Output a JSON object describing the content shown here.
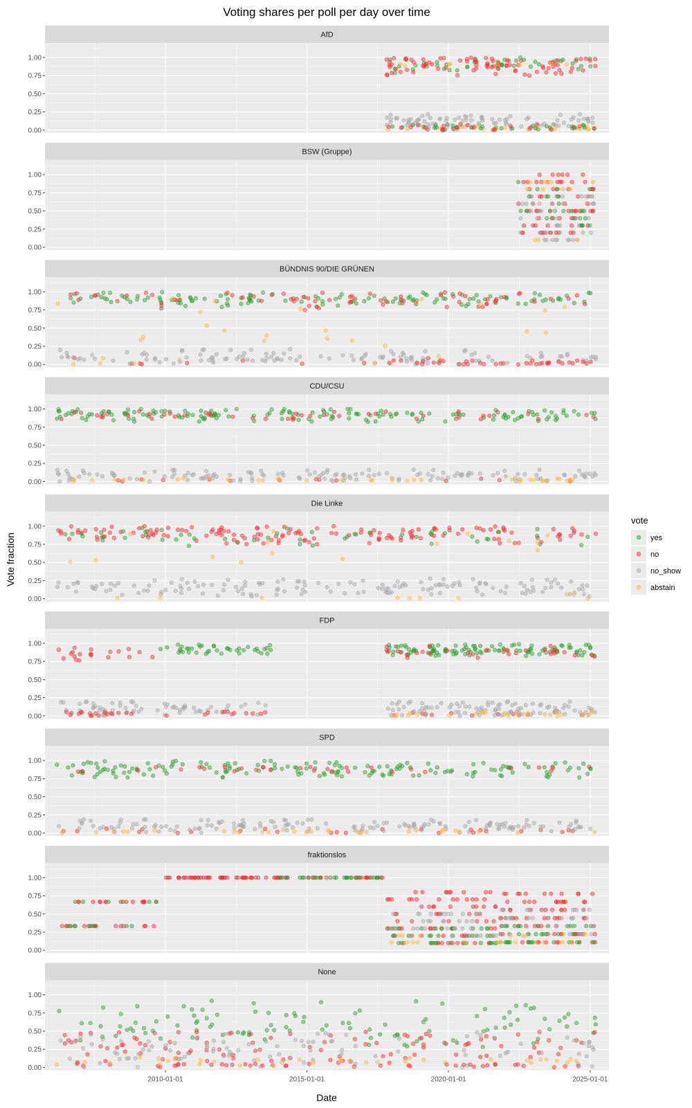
{
  "chart_data": {
    "type": "scatter",
    "title": "Voting shares per poll per day over time",
    "xlabel": "Date",
    "ylabel": "Vote fraction",
    "x_range": [
      "2005-10-01",
      "2025-09-01"
    ],
    "ylim": [
      -0.04,
      1.2
    ],
    "x_ticks": [
      "2010-01-01",
      "2015-01-01",
      "2020-01-01",
      "2025-01-01"
    ],
    "y_ticks": [
      "0.00",
      "0.25",
      "0.50",
      "0.75",
      "1.00"
    ],
    "grid": true,
    "legend": {
      "title": "vote",
      "placement": "right",
      "entries": [
        {
          "name": "yes",
          "color": "#2ca02c"
        },
        {
          "name": "no",
          "color": "#ff2a2a"
        },
        {
          "name": "no_show",
          "color": "#a6a6a6"
        },
        {
          "name": "abstain",
          "color": "#ffb732"
        }
      ]
    },
    "panels": [
      {
        "name": "AfD",
        "clusters": [
          {
            "vote": "yes",
            "from": "2017-10-24",
            "to": "2025-03-20",
            "levels": [
              0.88,
              0.92,
              0.95,
              0.83
            ],
            "n": 45,
            "jitter": 0.06
          },
          {
            "vote": "no",
            "from": "2017-10-24",
            "to": "2025-03-20",
            "levels": [
              0.85,
              0.92,
              0.8,
              0.96
            ],
            "n": 85,
            "jitter": 0.07
          },
          {
            "vote": "no_show",
            "from": "2017-10-24",
            "to": "2025-03-20",
            "levels": [
              0.05,
              0.1,
              0.14,
              0.18
            ],
            "n": 90,
            "jitter": 0.06
          },
          {
            "vote": "abstain",
            "from": "2017-10-24",
            "to": "2025-03-20",
            "levels": [
              0.01,
              0.03,
              0.9
            ],
            "n": 30,
            "jitter": 0.02
          },
          {
            "vote": "yes",
            "from": "2017-10-24",
            "to": "2025-03-20",
            "levels": [
              0.02,
              0.05
            ],
            "n": 30,
            "jitter": 0.03
          },
          {
            "vote": "no",
            "from": "2017-10-24",
            "to": "2025-03-20",
            "levels": [
              0.02,
              0.06
            ],
            "n": 25,
            "jitter": 0.03
          }
        ]
      },
      {
        "name": "BSW (Gruppe)",
        "clusters": [
          {
            "vote": "no",
            "from": "2022-06-01",
            "to": "2025-02-20",
            "levels": [
              1.0,
              0.9,
              0.8,
              0.7,
              0.6,
              0.5,
              0.4,
              0.3,
              0.2
            ],
            "n": 70,
            "jitter": 0.0
          },
          {
            "vote": "no_show",
            "from": "2022-06-01",
            "to": "2025-02-20",
            "levels": [
              0.1,
              0.2,
              0.3,
              0.4,
              0.5,
              0.6,
              0.7
            ],
            "n": 55,
            "jitter": 0.0
          },
          {
            "vote": "yes",
            "from": "2022-06-01",
            "to": "2025-02-20",
            "levels": [
              0.9,
              0.8,
              0.7,
              0.6,
              0.5,
              0.4,
              0.3
            ],
            "n": 25,
            "jitter": 0.0
          },
          {
            "vote": "abstain",
            "from": "2022-06-01",
            "to": "2025-02-20",
            "levels": [
              0.9,
              0.8,
              0.7,
              0.1
            ],
            "n": 12,
            "jitter": 0.0
          }
        ]
      },
      {
        "name": "BÜNDNIS 90/DIE GRÜNEN",
        "clusters": [
          {
            "vote": "yes",
            "from": "2006-03-01",
            "to": "2025-03-20",
            "levels": [
              0.88,
              0.92,
              0.95,
              0.85
            ],
            "n": 130,
            "jitter": 0.06
          },
          {
            "vote": "no",
            "from": "2006-03-01",
            "to": "2025-03-20",
            "levels": [
              0.9,
              0.82,
              0.95,
              0.02
            ],
            "n": 80,
            "jitter": 0.07
          },
          {
            "vote": "no_show",
            "from": "2006-03-01",
            "to": "2025-03-20",
            "levels": [
              0.05,
              0.1,
              0.15
            ],
            "n": 120,
            "jitter": 0.06
          },
          {
            "vote": "abstain",
            "from": "2006-03-01",
            "to": "2025-03-20",
            "levels": [
              0.85,
              0.4,
              0.02
            ],
            "n": 30,
            "jitter": 0.15
          },
          {
            "vote": "no",
            "from": "2017-10-24",
            "to": "2025-03-20",
            "levels": [
              0.01,
              0.04
            ],
            "n": 35,
            "jitter": 0.02
          }
        ]
      },
      {
        "name": "CDU/CSU",
        "clusters": [
          {
            "vote": "yes",
            "from": "2006-03-01",
            "to": "2025-03-20",
            "levels": [
              0.9,
              0.93,
              0.96,
              0.87
            ],
            "n": 160,
            "jitter": 0.05
          },
          {
            "vote": "no",
            "from": "2006-03-01",
            "to": "2025-03-20",
            "levels": [
              0.9,
              0.94,
              0.01
            ],
            "n": 60,
            "jitter": 0.04
          },
          {
            "vote": "no_show",
            "from": "2006-03-01",
            "to": "2025-03-20",
            "levels": [
              0.04,
              0.08,
              0.12
            ],
            "n": 140,
            "jitter": 0.05
          },
          {
            "vote": "abstain",
            "from": "2006-03-01",
            "to": "2025-03-20",
            "levels": [
              0.01,
              0.03
            ],
            "n": 35,
            "jitter": 0.02
          }
        ]
      },
      {
        "name": "Die Linke",
        "clusters": [
          {
            "vote": "no",
            "from": "2006-03-01",
            "to": "2025-03-20",
            "levels": [
              0.88,
              0.92,
              0.82,
              0.95
            ],
            "n": 150,
            "jitter": 0.07
          },
          {
            "vote": "yes",
            "from": "2006-03-01",
            "to": "2025-03-20",
            "levels": [
              0.85,
              0.8,
              0.9
            ],
            "n": 50,
            "jitter": 0.08
          },
          {
            "vote": "no_show",
            "from": "2006-03-01",
            "to": "2025-03-20",
            "levels": [
              0.08,
              0.12,
              0.18,
              0.22
            ],
            "n": 150,
            "jitter": 0.06
          },
          {
            "vote": "abstain",
            "from": "2006-03-01",
            "to": "2025-03-20",
            "levels": [
              0.85,
              0.02,
              0.6
            ],
            "n": 25,
            "jitter": 0.1
          }
        ]
      },
      {
        "name": "FDP",
        "clusters": [
          {
            "vote": "no",
            "from": "2006-03-01",
            "to": "2009-09-20",
            "levels": [
              0.85,
              0.9,
              0.8
            ],
            "n": 20,
            "jitter": 0.06
          },
          {
            "vote": "yes",
            "from": "2009-10-27",
            "to": "2013-09-20",
            "levels": [
              0.92,
              0.96,
              0.88
            ],
            "n": 40,
            "jitter": 0.05
          },
          {
            "vote": "yes",
            "from": "2017-10-24",
            "to": "2025-03-20",
            "levels": [
              0.9,
              0.94,
              0.87
            ],
            "n": 110,
            "jitter": 0.05
          },
          {
            "vote": "no",
            "from": "2017-10-24",
            "to": "2025-03-20",
            "levels": [
              0.92,
              0.85,
              0.01
            ],
            "n": 45,
            "jitter": 0.05
          },
          {
            "vote": "no_show",
            "from": "2006-03-01",
            "to": "2013-09-20",
            "levels": [
              0.05,
              0.1,
              0.15
            ],
            "n": 60,
            "jitter": 0.05
          },
          {
            "vote": "no_show",
            "from": "2017-10-24",
            "to": "2025-03-20",
            "levels": [
              0.05,
              0.1,
              0.15
            ],
            "n": 90,
            "jitter": 0.05
          },
          {
            "vote": "abstain",
            "from": "2017-10-24",
            "to": "2025-03-20",
            "levels": [
              0.01,
              0.03
            ],
            "n": 25,
            "jitter": 0.02
          },
          {
            "vote": "no",
            "from": "2006-03-01",
            "to": "2013-09-20",
            "levels": [
              0.01,
              0.04
            ],
            "n": 30,
            "jitter": 0.02
          }
        ]
      },
      {
        "name": "SPD",
        "clusters": [
          {
            "vote": "yes",
            "from": "2006-03-01",
            "to": "2025-03-20",
            "levels": [
              0.86,
              0.9,
              0.94,
              0.82
            ],
            "n": 160,
            "jitter": 0.06
          },
          {
            "vote": "no",
            "from": "2006-03-01",
            "to": "2025-03-20",
            "levels": [
              0.88,
              0.02
            ],
            "n": 55,
            "jitter": 0.04
          },
          {
            "vote": "no_show",
            "from": "2006-03-01",
            "to": "2025-03-20",
            "levels": [
              0.05,
              0.1,
              0.14
            ],
            "n": 150,
            "jitter": 0.05
          },
          {
            "vote": "abstain",
            "from": "2006-03-01",
            "to": "2025-03-20",
            "levels": [
              0.01,
              0.03
            ],
            "n": 30,
            "jitter": 0.02
          }
        ]
      },
      {
        "name": "fraktionslos",
        "clusters": [
          {
            "vote": "no",
            "from": "2006-03-01",
            "to": "2009-09-20",
            "levels": [
              0.667,
              0.333
            ],
            "n": 30,
            "jitter": 0.0
          },
          {
            "vote": "yes",
            "from": "2006-03-01",
            "to": "2009-09-20",
            "levels": [
              0.333,
              0.667
            ],
            "n": 14,
            "jitter": 0.0
          },
          {
            "vote": "no",
            "from": "2009-10-27",
            "to": "2013-09-20",
            "levels": [
              1.0
            ],
            "n": 45,
            "jitter": 0.0
          },
          {
            "vote": "yes",
            "from": "2013-10-22",
            "to": "2017-09-20",
            "levels": [
              1.0
            ],
            "n": 40,
            "jitter": 0.0
          },
          {
            "vote": "no",
            "from": "2013-10-22",
            "to": "2017-09-20",
            "levels": [
              1.0
            ],
            "n": 15,
            "jitter": 0.0
          },
          {
            "vote": "no",
            "from": "2017-10-24",
            "to": "2021-09-20",
            "levels": [
              0.1,
              0.2,
              0.3,
              0.4,
              0.5,
              0.6,
              0.7,
              0.8
            ],
            "n": 80,
            "jitter": 0.0
          },
          {
            "vote": "yes",
            "from": "2017-10-24",
            "to": "2021-09-20",
            "levels": [
              0.1,
              0.2,
              0.3
            ],
            "n": 40,
            "jitter": 0.0
          },
          {
            "vote": "no_show",
            "from": "2017-10-24",
            "to": "2021-09-20",
            "levels": [
              0.2,
              0.3,
              0.4,
              0.5
            ],
            "n": 40,
            "jitter": 0.0
          },
          {
            "vote": "no",
            "from": "2021-10-26",
            "to": "2025-03-20",
            "levels": [
              0.111,
              0.222,
              0.333,
              0.444,
              0.556,
              0.667,
              0.778
            ],
            "n": 80,
            "jitter": 0.0
          },
          {
            "vote": "yes",
            "from": "2021-10-26",
            "to": "2025-03-20",
            "levels": [
              0.111,
              0.222,
              0.333
            ],
            "n": 40,
            "jitter": 0.0
          },
          {
            "vote": "no_show",
            "from": "2021-10-26",
            "to": "2025-03-20",
            "levels": [
              0.222,
              0.333,
              0.444,
              0.556
            ],
            "n": 35,
            "jitter": 0.0
          },
          {
            "vote": "abstain",
            "from": "2017-10-24",
            "to": "2025-03-20",
            "levels": [
              0.111,
              0.2,
              0.222
            ],
            "n": 20,
            "jitter": 0.0
          }
        ]
      },
      {
        "name": "None",
        "clusters": [
          {
            "vote": "yes",
            "from": "2006-03-01",
            "to": "2025-03-20",
            "levels": [
              0.7,
              0.6,
              0.5,
              0.8,
              0.4
            ],
            "n": 110,
            "jitter": 0.12
          },
          {
            "vote": "no",
            "from": "2006-03-01",
            "to": "2025-03-20",
            "levels": [
              0.3,
              0.2,
              0.1,
              0.4
            ],
            "n": 110,
            "jitter": 0.1
          },
          {
            "vote": "no_show",
            "from": "2006-03-01",
            "to": "2025-03-20",
            "levels": [
              0.1,
              0.2,
              0.3,
              0.4
            ],
            "n": 100,
            "jitter": 0.1
          },
          {
            "vote": "abstain",
            "from": "2006-03-01",
            "to": "2025-03-20",
            "levels": [
              0.05,
              0.1
            ],
            "n": 35,
            "jitter": 0.04
          },
          {
            "vote": "no",
            "from": "2009-10-27",
            "to": "2025-03-20",
            "levels": [
              0.03
            ],
            "n": 30,
            "jitter": 0.02
          }
        ]
      }
    ]
  }
}
